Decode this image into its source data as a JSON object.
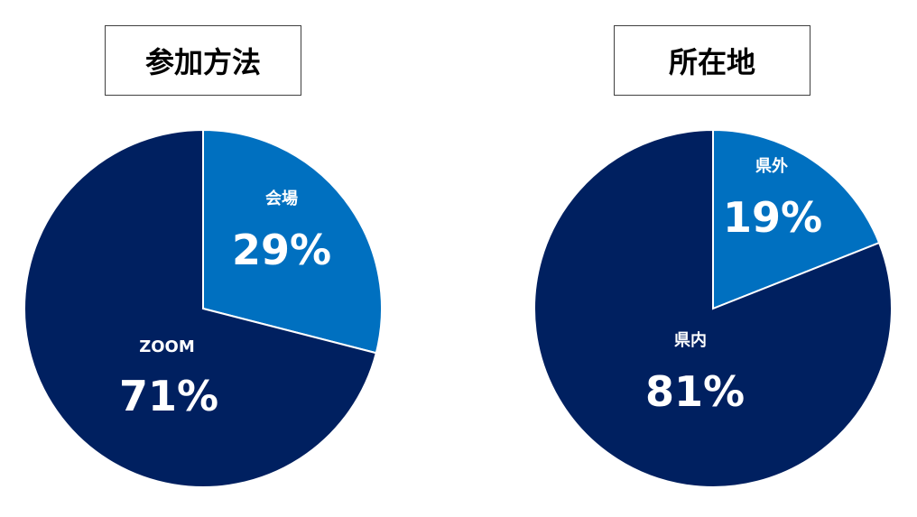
{
  "chart_data": [
    {
      "type": "pie",
      "title": "参加方法",
      "categories": [
        "会場",
        "ZOOM"
      ],
      "values": [
        29,
        71
      ],
      "labels": [
        "29%",
        "71%"
      ],
      "colors": [
        "#0070C0",
        "#002060"
      ],
      "legend": "none"
    },
    {
      "type": "pie",
      "title": "所在地",
      "categories": [
        "県外",
        "県内"
      ],
      "values": [
        19,
        81
      ],
      "labels": [
        "19%",
        "81%"
      ],
      "colors": [
        "#0070C0",
        "#002060"
      ],
      "legend": "none"
    }
  ]
}
